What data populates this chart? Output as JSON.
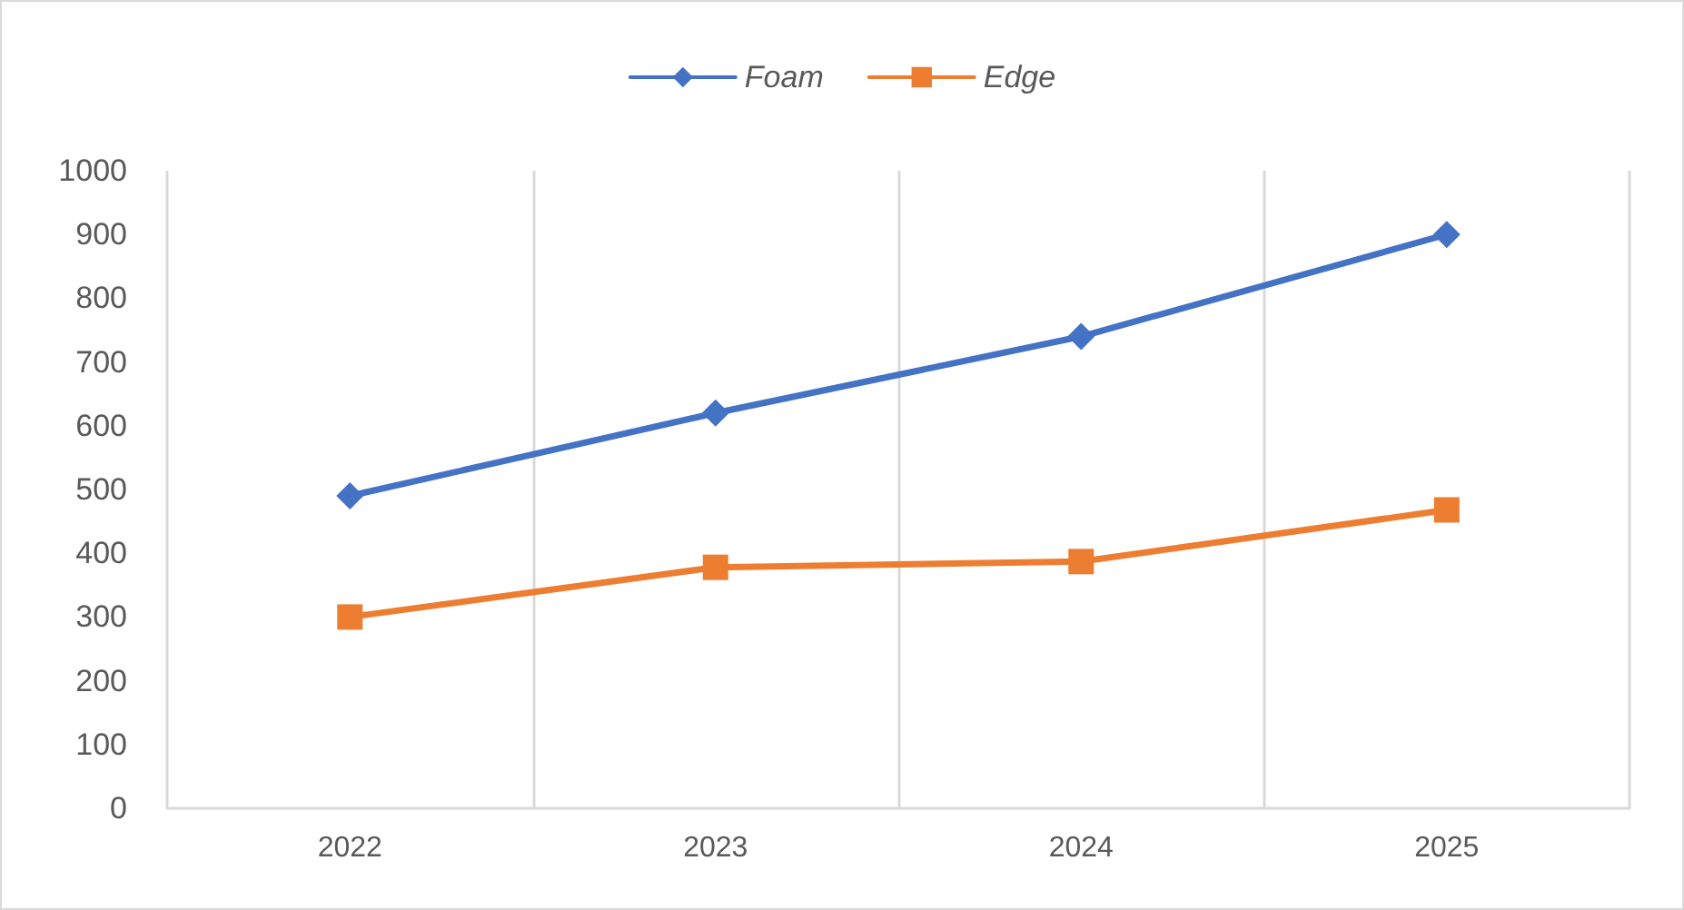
{
  "chart_data": {
    "type": "line",
    "categories": [
      "2022",
      "2023",
      "2024",
      "2025"
    ],
    "series": [
      {
        "name": "Foam",
        "color": "#4472c4",
        "marker": "diamond",
        "values": [
          490,
          620,
          740,
          900
        ]
      },
      {
        "name": "Edge",
        "color": "#ed7d31",
        "marker": "square",
        "values": [
          300,
          378,
          387,
          468
        ]
      }
    ],
    "ylim": [
      0,
      1000
    ],
    "yticks": [
      0,
      100,
      200,
      300,
      400,
      500,
      600,
      700,
      800,
      900,
      1000
    ],
    "grid": "x",
    "legend": "top",
    "line_style": "solid"
  }
}
